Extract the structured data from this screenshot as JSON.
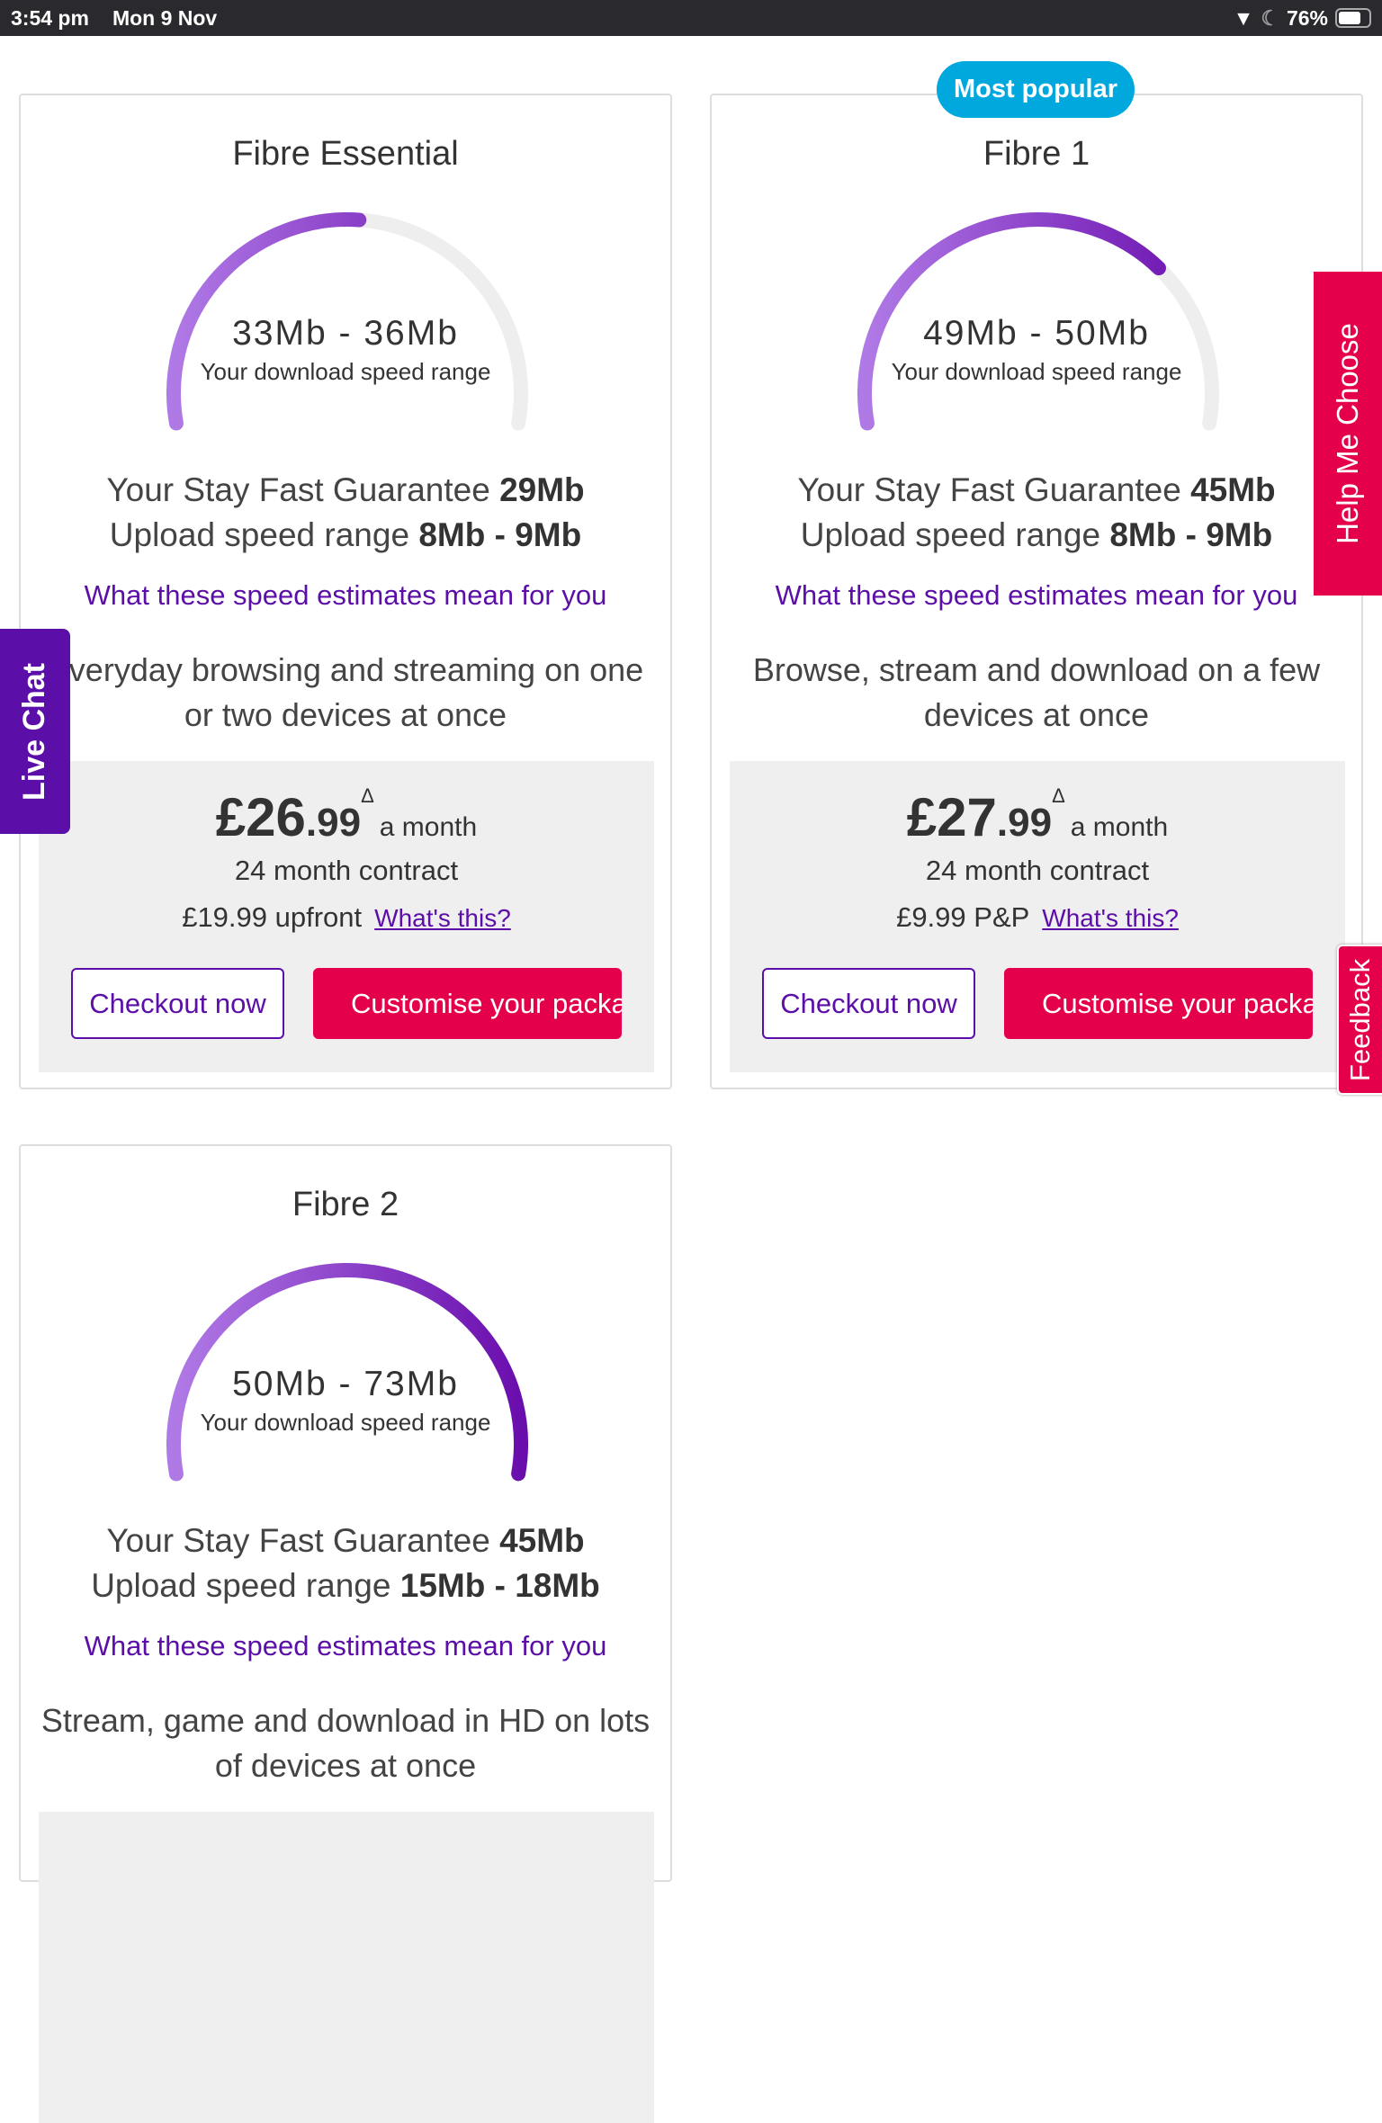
{
  "status_bar": {
    "time": "3:54 pm",
    "date": "Mon 9 Nov",
    "battery": "76%",
    "battery_level": 0.76
  },
  "badge": "Most popular",
  "colors": {
    "purple": "#5c0fa8",
    "pink": "#e4004b",
    "badge": "#00a8dd",
    "gauge_start": "#b07ae6",
    "gauge_end": "#6a0dad",
    "gauge_track": "#eeeeee"
  },
  "plans": [
    {
      "title": "Fibre Essential",
      "speed": "33Mb - 36Mb",
      "speed_sub": "Your download speed range",
      "gauge_fill": 0.52,
      "guarantee_label": "Your Stay Fast Guarantee ",
      "guarantee": "29Mb",
      "upload_label": "Upload speed range ",
      "upload": "8Mb - 9Mb",
      "link": "What these speed estimates mean for you",
      "desc": "Everyday browsing and streaming on one or two devices at once",
      "price_main": "£26",
      "price_dec": ".99",
      "price_sup": "Δ",
      "price_per": "a month",
      "contract": "24 month contract",
      "upfront": "£19.99 upfront",
      "whats_this": "What's this?",
      "checkout": "Checkout now",
      "customise": "Customise your package"
    },
    {
      "title": "Fibre 1",
      "speed": "49Mb - 50Mb",
      "speed_sub": "Your download speed range",
      "gauge_fill": 0.72,
      "guarantee_label": "Your Stay Fast Guarantee ",
      "guarantee": "45Mb",
      "upload_label": "Upload speed range ",
      "upload": "8Mb - 9Mb",
      "link": "What these speed estimates mean for you",
      "desc": "Browse, stream and download on a few devices at once",
      "price_main": "£27",
      "price_dec": ".99",
      "price_sup": "Δ",
      "price_per": "a month",
      "contract": "24 month contract",
      "upfront": "£9.99 P&P",
      "whats_this": "What's this?",
      "checkout": "Checkout now",
      "customise": "Customise your package"
    },
    {
      "title": "Fibre 2",
      "speed": "50Mb - 73Mb",
      "speed_sub": "Your download speed range",
      "gauge_fill": 1.0,
      "guarantee_label": "Your Stay Fast Guarantee ",
      "guarantee": "45Mb",
      "upload_label": "Upload speed range ",
      "upload": "15Mb - 18Mb",
      "link": "What these speed estimates mean for you",
      "desc": "Stream, game and download in HD on lots of devices at once"
    }
  ],
  "live_chat": "Live Chat",
  "help_me_choose": "Help Me Choose",
  "feedback": "Feedback"
}
